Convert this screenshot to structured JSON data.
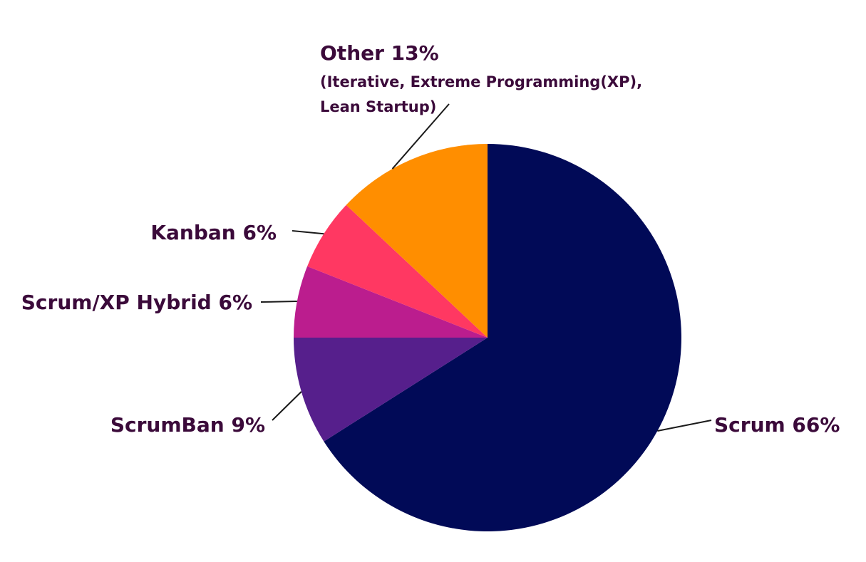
{
  "chart_data": {
    "type": "pie",
    "title": "",
    "start_angle_deg": 0,
    "direction": "clockwise",
    "slices": [
      {
        "name": "Scrum",
        "value": 66,
        "label": "Scrum 66%",
        "note": "",
        "color": "#010a57"
      },
      {
        "name": "ScrumBan",
        "value": 9,
        "label": "ScrumBan 9%",
        "note": "",
        "color": "#561f8c"
      },
      {
        "name": "Scrum/XP Hybrid",
        "value": 6,
        "label": "Scrum/XP Hybrid 6%",
        "note": "",
        "color": "#bb1d8e"
      },
      {
        "name": "Kanban",
        "value": 6,
        "label": "Kanban 6%",
        "note": "",
        "color": "#ff3862"
      },
      {
        "name": "Other",
        "value": 13,
        "label": "Other 13%",
        "note_lines": [
          "(Iterative, Extreme Programming(XP),",
          "Lean Startup)"
        ],
        "color": "#ff8e00"
      }
    ]
  }
}
